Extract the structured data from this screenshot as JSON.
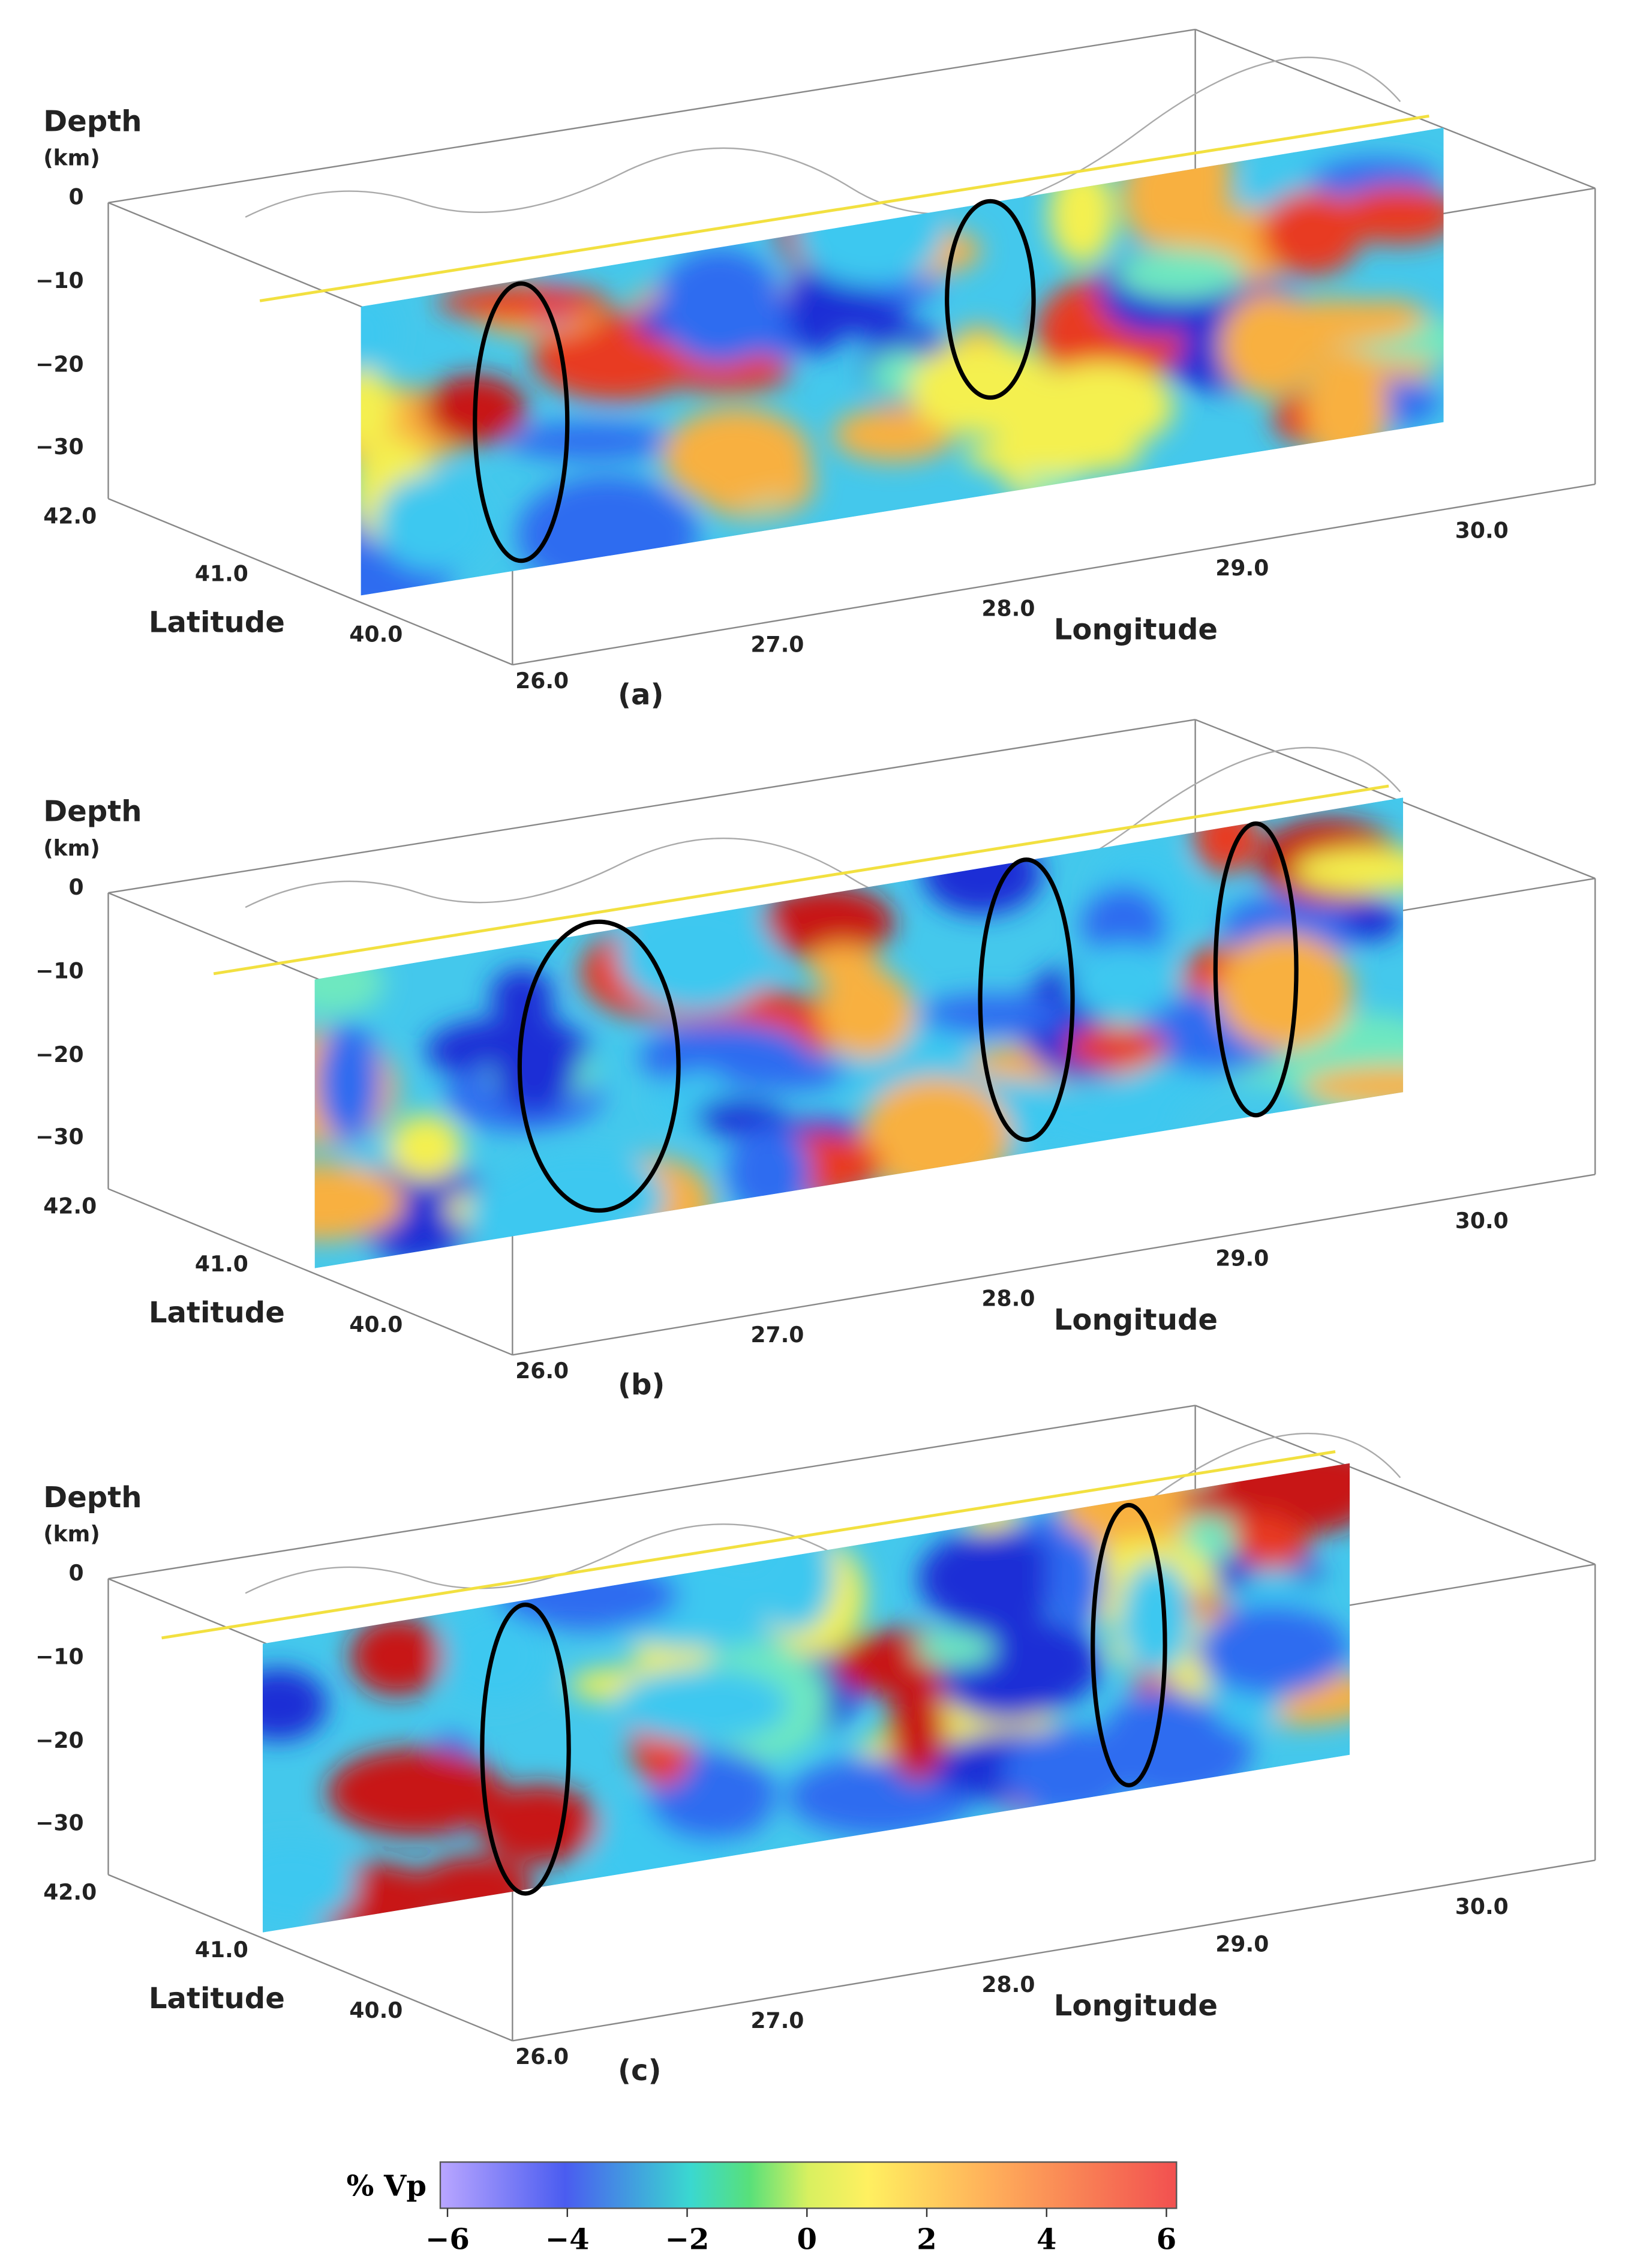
{
  "panels": [
    {
      "depth_label": "Depth",
      "depth_unit": "(km)",
      "depth_ticks": [
        "0",
        "−10",
        "−20",
        "−30"
      ],
      "lat_label": "Latitude",
      "lat_ticks": [
        "42.0",
        "41.0",
        "40.0"
      ],
      "lon_label": "Longitude",
      "lon_ticks": [
        "26.0",
        "27.0",
        "28.0",
        "29.0",
        "30.0"
      ],
      "panel_label": "(a)"
    },
    {
      "depth_label": "Depth",
      "depth_unit": "(km)",
      "depth_ticks": [
        "0",
        "−10",
        "−20",
        "−30"
      ],
      "lat_label": "Latitude",
      "lat_ticks": [
        "42.0",
        "41.0",
        "40.0"
      ],
      "lon_label": "Longitude",
      "lon_ticks": [
        "26.0",
        "27.0",
        "28.0",
        "29.0",
        "30.0"
      ],
      "panel_label": "(b)"
    },
    {
      "depth_label": "Depth",
      "depth_unit": "(km)",
      "depth_ticks": [
        "0",
        "−10",
        "−20",
        "−30"
      ],
      "lat_label": "Latitude",
      "lat_ticks": [
        "42.0",
        "41.0",
        "40.0"
      ],
      "lon_label": "Longitude",
      "lon_ticks": [
        "26.0",
        "27.0",
        "28.0",
        "29.0",
        "30.0"
      ],
      "panel_label": "(c)"
    }
  ],
  "colorbar": {
    "label": "% Vp",
    "ticks": [
      "−6",
      "−4",
      "−2",
      "0",
      "2",
      "4",
      "6"
    ]
  }
}
